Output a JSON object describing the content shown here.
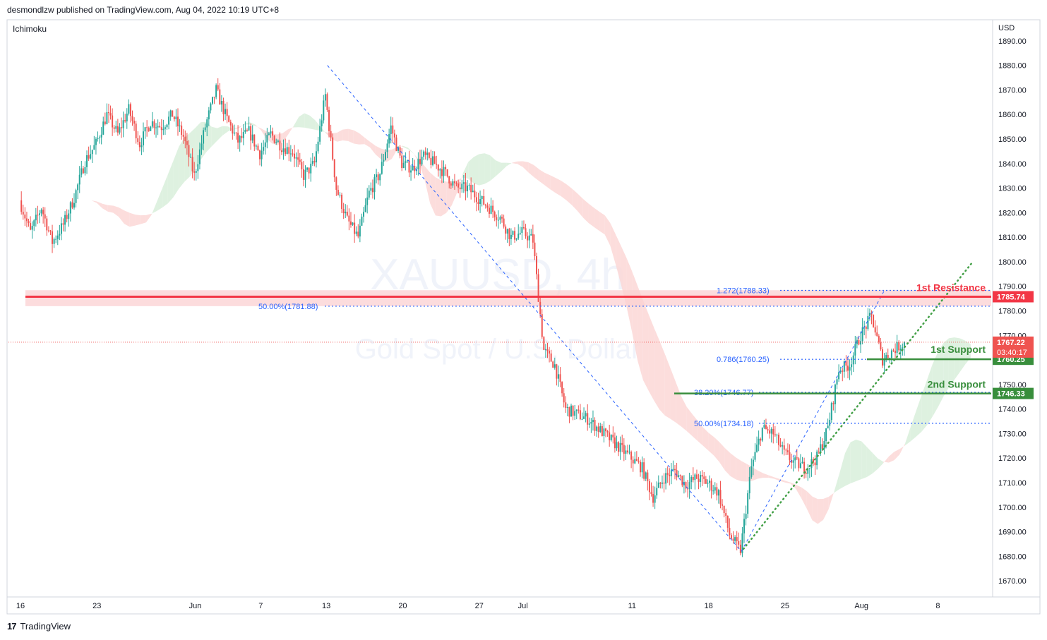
{
  "header": {
    "publisher": "desmondlzw published on TradingView.com, Aug 04, 2022 10:19 UTC+8"
  },
  "indicator": {
    "name": "Ichimoku"
  },
  "currency": {
    "label": "USD"
  },
  "footer": {
    "logo": "17",
    "brand": "TradingView"
  },
  "watermark": {
    "symbol": "XAUUSD, 4h",
    "description": "Gold Spot / U.S. Dollar"
  },
  "colors": {
    "up": "#26a69a",
    "down": "#ef5350",
    "resistance": "#f23645",
    "support": "#388e3c",
    "fib": "#2962ff"
  },
  "chart_data": {
    "type": "candlestick",
    "ylim": [
      1664,
      1898
    ],
    "y_ticks": [
      1670,
      1680,
      1690,
      1700,
      1710,
      1720,
      1730,
      1740,
      1750,
      1760,
      1770,
      1780,
      1790,
      1800,
      1810,
      1820,
      1830,
      1840,
      1850,
      1860,
      1870,
      1880,
      1890
    ],
    "x_ticks": [
      {
        "label": "16",
        "day": 0
      },
      {
        "label": "23",
        "day": 7
      },
      {
        "label": "Jun",
        "day": 16
      },
      {
        "label": "7",
        "day": 22
      },
      {
        "label": "13",
        "day": 28
      },
      {
        "label": "20",
        "day": 35
      },
      {
        "label": "27",
        "day": 42
      },
      {
        "label": "Jul",
        "day": 46
      },
      {
        "label": "11",
        "day": 56
      },
      {
        "label": "18",
        "day": 63
      },
      {
        "label": "25",
        "day": 70
      },
      {
        "label": "Aug",
        "day": 77
      },
      {
        "label": "8",
        "day": 84
      }
    ],
    "price_path": [
      [
        0,
        1825
      ],
      [
        1,
        1812
      ],
      [
        2,
        1822
      ],
      [
        3,
        1808
      ],
      [
        4,
        1815
      ],
      [
        5,
        1826
      ],
      [
        6,
        1841
      ],
      [
        7,
        1848
      ],
      [
        8,
        1860
      ],
      [
        9,
        1852
      ],
      [
        10,
        1862
      ],
      [
        11,
        1848
      ],
      [
        12,
        1857
      ],
      [
        13,
        1855
      ],
      [
        14,
        1860
      ],
      [
        15,
        1851
      ],
      [
        16,
        1835
      ],
      [
        17,
        1855
      ],
      [
        18,
        1870
      ],
      [
        19,
        1858
      ],
      [
        20,
        1849
      ],
      [
        21,
        1853
      ],
      [
        22,
        1844
      ],
      [
        23,
        1852
      ],
      [
        24,
        1847
      ],
      [
        25,
        1845
      ],
      [
        26,
        1835
      ],
      [
        27,
        1840
      ],
      [
        28,
        1868
      ],
      [
        29,
        1830
      ],
      [
        30,
        1817
      ],
      [
        31,
        1810
      ],
      [
        32,
        1828
      ],
      [
        33,
        1836
      ],
      [
        34,
        1855
      ],
      [
        35,
        1840
      ],
      [
        36,
        1838
      ],
      [
        37,
        1843
      ],
      [
        38,
        1840
      ],
      [
        39,
        1836
      ],
      [
        40,
        1830
      ],
      [
        41,
        1830
      ],
      [
        42,
        1826
      ],
      [
        43,
        1822
      ],
      [
        44,
        1818
      ],
      [
        45,
        1810
      ],
      [
        46,
        1812
      ],
      [
        47,
        1809
      ],
      [
        48,
        1764
      ],
      [
        49,
        1758
      ],
      [
        50,
        1740
      ],
      [
        51,
        1738
      ],
      [
        52,
        1736
      ],
      [
        53,
        1732
      ],
      [
        54,
        1728
      ],
      [
        55,
        1724
      ],
      [
        56,
        1720
      ],
      [
        57,
        1716
      ],
      [
        58,
        1704
      ],
      [
        59,
        1712
      ],
      [
        60,
        1715
      ],
      [
        61,
        1709
      ],
      [
        62,
        1712
      ],
      [
        63,
        1710
      ],
      [
        64,
        1706
      ],
      [
        65,
        1689
      ],
      [
        66,
        1682
      ],
      [
        67,
        1716
      ],
      [
        68,
        1732
      ],
      [
        69,
        1730
      ],
      [
        70,
        1722
      ],
      [
        71,
        1718
      ],
      [
        72,
        1716
      ],
      [
        73,
        1720
      ],
      [
        74,
        1732
      ],
      [
        75,
        1756
      ],
      [
        76,
        1758
      ],
      [
        77,
        1770
      ],
      [
        78,
        1778
      ],
      [
        79,
        1760
      ],
      [
        80,
        1764
      ],
      [
        81,
        1767
      ]
    ],
    "current_price": "1767.22",
    "countdown": "03:40:17",
    "levels": [
      {
        "name": "1st Resistance",
        "price": 1785.74,
        "price_label": "1785.74"
      },
      {
        "name": "1st Support",
        "price": 1760.25,
        "price_label": "1760.25"
      },
      {
        "name": "2nd Support",
        "price": 1746.33,
        "price_label": "1746.33"
      }
    ],
    "fib_levels": [
      {
        "label": "1.272(1788.33)",
        "price": 1788.33
      },
      {
        "label": "50.00%(1781.88)",
        "price": 1781.88
      },
      {
        "label": "0.786(1760.25)",
        "price": 1760.25
      },
      {
        "label": "38.20%(1746.77)",
        "price": 1746.77
      },
      {
        "label": "50.00%(1734.18)",
        "price": 1734.18
      }
    ]
  }
}
